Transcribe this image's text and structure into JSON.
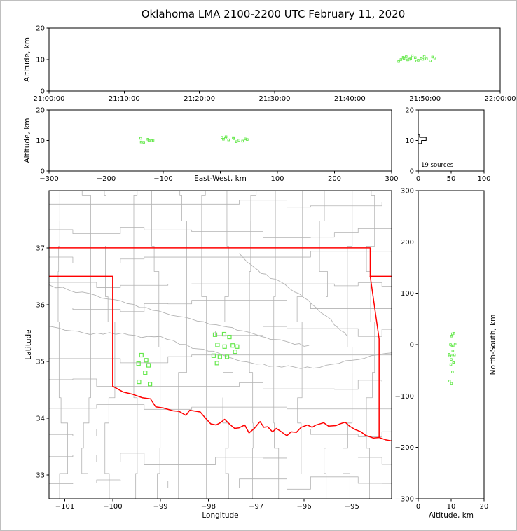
{
  "title": "Oklahoma LMA 2100-2200 UTC February 11, 2020",
  "chart_data": {
    "type": "scatter",
    "title": "Oklahoma LMA 2100-2200 UTC February 11, 2020",
    "style": {
      "state_border_color": "#ff0000",
      "county_color": "#b3b3b3",
      "source_color": "#66e84d",
      "histogram_color": "#000000",
      "axis_color": "#000000"
    },
    "panels": {
      "time_height": {
        "x_range_minutes": [
          0,
          60
        ],
        "x_ticks_minutes": [
          0,
          10,
          20,
          30,
          40,
          50,
          60
        ],
        "x_tick_labels": [
          "21:00:00",
          "21:10:00",
          "21:20:00",
          "21:30:00",
          "21:40:00",
          "21:50:00",
          "22:00:00"
        ],
        "y_range_km": [
          0,
          20
        ],
        "y_ticks": [
          0,
          10,
          20
        ],
        "y_tick_labels": [
          "0",
          "10",
          "20"
        ],
        "y_label": "Altitude, km"
      },
      "ew_height": {
        "x_range_km": [
          -300,
          300
        ],
        "x_ticks": [
          -300,
          -200,
          -100,
          0,
          100,
          200,
          300
        ],
        "x_tick_labels": [
          "−300",
          "−200",
          "−100",
          "",
          "100",
          "200",
          "300"
        ],
        "x_label": "East-West, km",
        "y_range_km": [
          0,
          20
        ],
        "y_ticks": [
          0,
          10,
          20
        ],
        "y_tick_labels": [
          "0",
          "10",
          "20"
        ],
        "y_label": "Altitude, km"
      },
      "alt_histogram": {
        "x_range": [
          0,
          100
        ],
        "x_ticks": [
          0,
          50,
          100
        ],
        "x_tick_labels": [
          "0",
          "50",
          "100"
        ],
        "y_range_km": [
          0,
          20
        ],
        "y_ticks": [
          0,
          10,
          20
        ],
        "y_tick_labels": [
          "0",
          "10",
          "20"
        ],
        "annotation": "19 sources",
        "bin_km": 1
      },
      "plan_view": {
        "x_range_deg": [
          -101.33,
          -94.17
        ],
        "x_ticks": [
          -101,
          -100,
          -99,
          -98,
          -97,
          -96,
          -95
        ],
        "x_tick_labels": [
          "−101",
          "−100",
          "−99",
          "−98",
          "−97",
          "−96",
          "−95"
        ],
        "x_label": "Longitude",
        "y_range_deg": [
          32.58,
          38.01
        ],
        "y_ticks": [
          33,
          34,
          35,
          36,
          37
        ],
        "y_tick_labels": [
          "33",
          "34",
          "35",
          "36",
          "37"
        ],
        "y_label": "Latitude"
      },
      "ns_height": {
        "x_range_km": [
          0,
          20
        ],
        "x_ticks": [
          0,
          10,
          20
        ],
        "x_tick_labels": [
          "0",
          "10",
          "20"
        ],
        "x_label": "Altitude, km",
        "y_range_km": [
          -300,
          300
        ],
        "y_ticks": [
          -300,
          -200,
          -100,
          0,
          100,
          200,
          300
        ],
        "y_tick_labels": [
          "−300",
          "−200",
          "−100",
          "0",
          "100",
          "200",
          "300"
        ],
        "y_label": "North-South, km"
      }
    },
    "network_center": {
      "lon": -97.92,
      "lat": 35.28
    },
    "km_per_deg_lat": 111.0,
    "km_per_deg_lon": 90.6,
    "sources": [
      {
        "lon": -97.86,
        "lat": 35.47,
        "alt_km": 10.4,
        "t_min": 47.2
      },
      {
        "lon": -97.67,
        "lat": 35.48,
        "alt_km": 10.9,
        "t_min": 47.5
      },
      {
        "lon": -97.56,
        "lat": 35.43,
        "alt_km": 10.1,
        "t_min": 47.9
      },
      {
        "lon": -97.81,
        "lat": 35.29,
        "alt_km": 11.2,
        "t_min": 48.3
      },
      {
        "lon": -97.66,
        "lat": 35.26,
        "alt_km": 10.6,
        "t_min": 48.7
      },
      {
        "lon": -97.49,
        "lat": 35.28,
        "alt_km": 9.8,
        "t_min": 49.1
      },
      {
        "lon": -97.4,
        "lat": 35.26,
        "alt_km": 10.3,
        "t_min": 49.5
      },
      {
        "lon": -97.89,
        "lat": 35.1,
        "alt_km": 11.0,
        "t_min": 49.9
      },
      {
        "lon": -97.76,
        "lat": 35.08,
        "alt_km": 10.2,
        "t_min": 50.2
      },
      {
        "lon": -97.61,
        "lat": 35.08,
        "alt_km": 9.6,
        "t_min": 50.7
      },
      {
        "lon": -97.82,
        "lat": 34.97,
        "alt_km": 10.8,
        "t_min": 51.0
      },
      {
        "lon": -97.44,
        "lat": 35.17,
        "alt_km": 10.5,
        "t_min": 51.3
      },
      {
        "lon": -99.4,
        "lat": 35.11,
        "alt_km": 9.4,
        "t_min": 46.5
      },
      {
        "lon": -99.3,
        "lat": 35.02,
        "alt_km": 10.0,
        "t_min": 46.8
      },
      {
        "lon": -99.46,
        "lat": 34.96,
        "alt_km": 10.7,
        "t_min": 47.1
      },
      {
        "lon": -99.25,
        "lat": 34.93,
        "alt_km": 9.9,
        "t_min": 47.7
      },
      {
        "lon": -99.32,
        "lat": 34.8,
        "alt_km": 10.4,
        "t_min": 48.1
      },
      {
        "lon": -99.45,
        "lat": 34.64,
        "alt_km": 9.5,
        "t_min": 48.9
      },
      {
        "lon": -99.22,
        "lat": 34.6,
        "alt_km": 10.1,
        "t_min": 49.7
      }
    ],
    "state_borders": [
      [
        [
          -101.33,
          37.0
        ],
        [
          -94.617,
          37.0
        ],
        [
          -94.617,
          36.5
        ]
      ],
      [
        [
          -94.617,
          36.5
        ],
        [
          -94.17,
          36.5
        ]
      ],
      [
        [
          -94.617,
          36.5
        ],
        [
          -94.431,
          35.396
        ],
        [
          -94.431,
          33.66
        ]
      ],
      [
        [
          -101.33,
          36.5
        ],
        [
          -100.0,
          36.5
        ],
        [
          -100.0,
          34.563
        ]
      ],
      [
        [
          -100.0,
          34.563
        ],
        [
          -99.78,
          34.46
        ],
        [
          -99.58,
          34.42
        ],
        [
          -99.38,
          34.36
        ],
        [
          -99.21,
          34.34
        ],
        [
          -99.1,
          34.2
        ],
        [
          -98.94,
          34.18
        ],
        [
          -98.74,
          34.13
        ],
        [
          -98.61,
          34.12
        ],
        [
          -98.47,
          34.05
        ],
        [
          -98.39,
          34.14
        ],
        [
          -98.17,
          34.11
        ],
        [
          -98.08,
          34.02
        ],
        [
          -97.95,
          33.9
        ],
        [
          -97.84,
          33.88
        ],
        [
          -97.75,
          33.92
        ],
        [
          -97.66,
          33.98
        ],
        [
          -97.55,
          33.89
        ],
        [
          -97.45,
          33.82
        ],
        [
          -97.36,
          33.83
        ],
        [
          -97.24,
          33.88
        ],
        [
          -97.15,
          33.74
        ],
        [
          -97.04,
          33.82
        ],
        [
          -96.92,
          33.94
        ],
        [
          -96.84,
          33.84
        ],
        [
          -96.76,
          33.85
        ],
        [
          -96.66,
          33.76
        ],
        [
          -96.58,
          33.82
        ],
        [
          -96.49,
          33.77
        ],
        [
          -96.36,
          33.69
        ],
        [
          -96.27,
          33.76
        ],
        [
          -96.16,
          33.75
        ],
        [
          -96.06,
          33.84
        ],
        [
          -95.93,
          33.88
        ],
        [
          -95.83,
          33.84
        ],
        [
          -95.75,
          33.88
        ],
        [
          -95.59,
          33.92
        ],
        [
          -95.49,
          33.86
        ],
        [
          -95.33,
          33.87
        ],
        [
          -95.25,
          33.9
        ],
        [
          -95.14,
          33.93
        ],
        [
          -95.05,
          33.86
        ],
        [
          -94.93,
          33.8
        ],
        [
          -94.81,
          33.76
        ],
        [
          -94.72,
          33.7
        ],
        [
          -94.55,
          33.65
        ],
        [
          -94.43,
          33.66
        ],
        [
          -94.3,
          33.62
        ],
        [
          -94.17,
          33.6
        ]
      ]
    ],
    "rivers": [
      [
        [
          -101.33,
          35.62
        ],
        [
          -101.0,
          35.55
        ],
        [
          -100.6,
          35.5
        ],
        [
          -100.2,
          35.48
        ],
        [
          -99.8,
          35.5
        ],
        [
          -99.4,
          35.42
        ],
        [
          -99.0,
          35.44
        ],
        [
          -98.6,
          35.3
        ],
        [
          -98.2,
          35.22
        ],
        [
          -97.9,
          35.18
        ],
        [
          -97.6,
          35.08
        ],
        [
          -97.3,
          35.0
        ],
        [
          -97.0,
          34.95
        ],
        [
          -96.6,
          34.92
        ],
        [
          -96.2,
          34.9
        ],
        [
          -95.8,
          34.88
        ],
        [
          -95.4,
          34.95
        ],
        [
          -95.0,
          35.02
        ],
        [
          -94.6,
          35.1
        ],
        [
          -94.17,
          35.15
        ]
      ],
      [
        [
          -101.33,
          36.35
        ],
        [
          -100.9,
          36.25
        ],
        [
          -100.5,
          36.2
        ],
        [
          -100.1,
          36.1
        ],
        [
          -99.7,
          36.02
        ],
        [
          -99.3,
          35.95
        ],
        [
          -98.9,
          35.85
        ],
        [
          -98.5,
          35.78
        ],
        [
          -98.1,
          35.7
        ],
        [
          -97.7,
          35.62
        ],
        [
          -97.4,
          35.55
        ],
        [
          -97.1,
          35.5
        ],
        [
          -96.8,
          35.42
        ],
        [
          -96.5,
          35.38
        ],
        [
          -96.2,
          35.3
        ],
        [
          -95.9,
          35.28
        ]
      ],
      [
        [
          -97.35,
          36.9
        ],
        [
          -97.1,
          36.7
        ],
        [
          -96.9,
          36.55
        ],
        [
          -96.6,
          36.45
        ],
        [
          -96.3,
          36.28
        ],
        [
          -96.0,
          36.12
        ],
        [
          -95.75,
          35.95
        ],
        [
          -95.5,
          35.78
        ],
        [
          -95.3,
          35.6
        ],
        [
          -95.1,
          35.45
        ]
      ]
    ],
    "county_grid": {
      "seed": 7,
      "d_lon": 0.497,
      "d_lat": 0.445,
      "jitter": 0.11
    }
  }
}
